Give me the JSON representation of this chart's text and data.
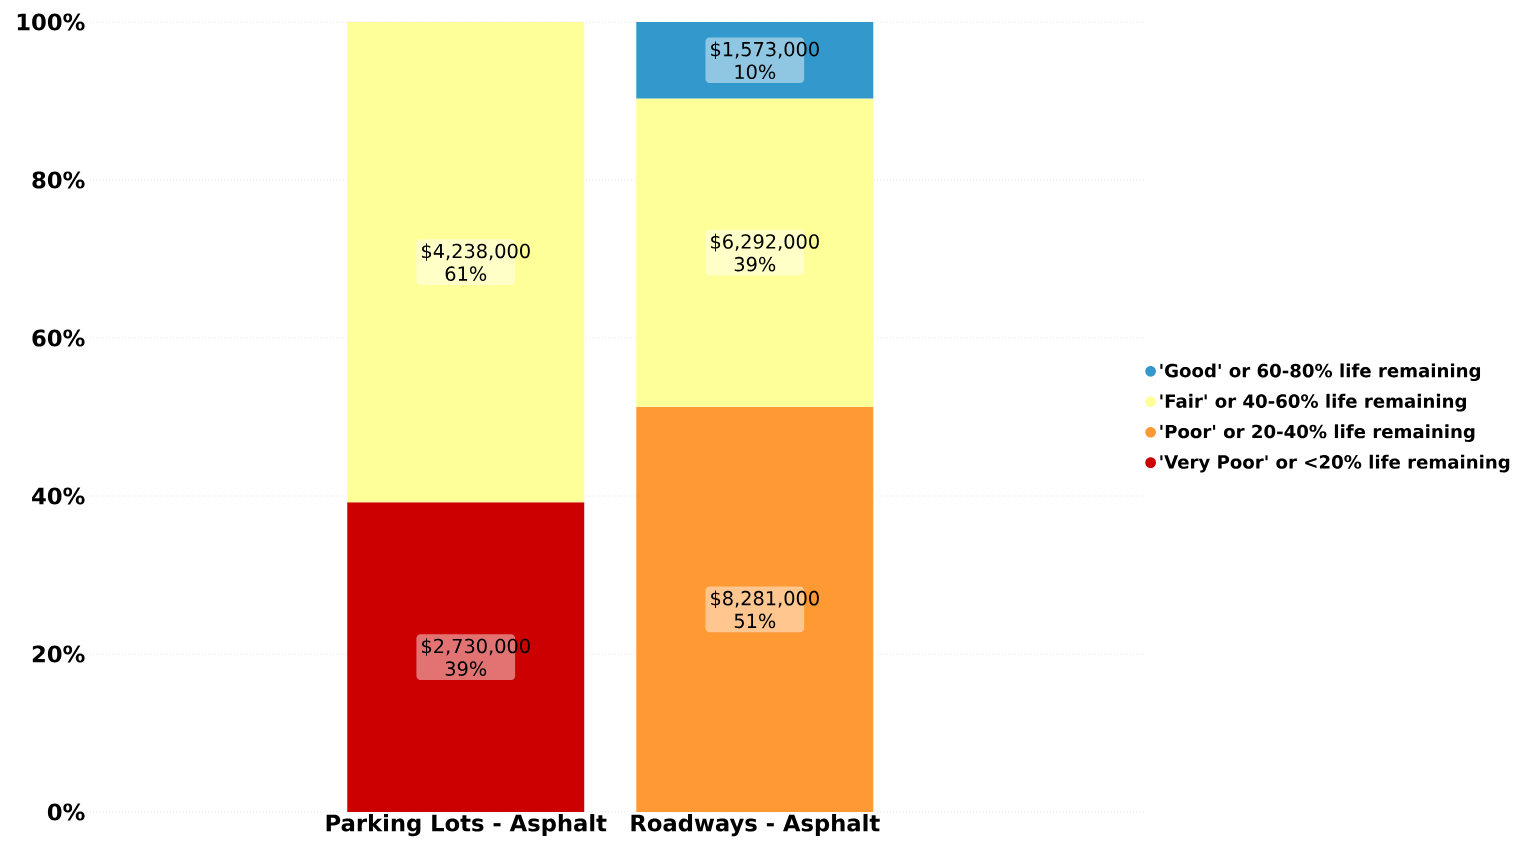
{
  "chart_data": {
    "type": "bar",
    "stacked": true,
    "categories": [
      "Parking Lots - Asphalt",
      "Roadways - Asphalt"
    ],
    "series": [
      {
        "name": "'Very Poor' or <20% life remaining",
        "color": "#cc0000",
        "values": [
          39.2,
          null
        ],
        "value_labels": [
          "$2,730,000 39%",
          null
        ]
      },
      {
        "name": "'Poor' or 20-40% life remaining",
        "color": "#ff9933",
        "values": [
          null,
          51.3
        ],
        "value_labels": [
          null,
          "$8,281,000 51%"
        ]
      },
      {
        "name": "'Fair' or 40-60% life remaining",
        "color": "#ffff99",
        "values": [
          60.8,
          39.0
        ],
        "value_labels": [
          "$4,238,000 61%",
          "$6,292,000 39%"
        ]
      },
      {
        "name": "'Good' or 60-80% life remaining",
        "color": "#3399cc",
        "values": [
          null,
          9.7
        ],
        "value_labels": [
          null,
          "$1,573,000 10%"
        ]
      }
    ],
    "ylim": [
      0,
      100
    ],
    "yticks": [
      {
        "value": 0,
        "label": "0%"
      },
      {
        "value": 20,
        "label": "20%"
      },
      {
        "value": 40,
        "label": "40%"
      },
      {
        "value": 60,
        "label": "60%"
      },
      {
        "value": 80,
        "label": "80%"
      },
      {
        "value": 100,
        "label": "100%"
      }
    ],
    "grid": "y",
    "legend": "right"
  }
}
